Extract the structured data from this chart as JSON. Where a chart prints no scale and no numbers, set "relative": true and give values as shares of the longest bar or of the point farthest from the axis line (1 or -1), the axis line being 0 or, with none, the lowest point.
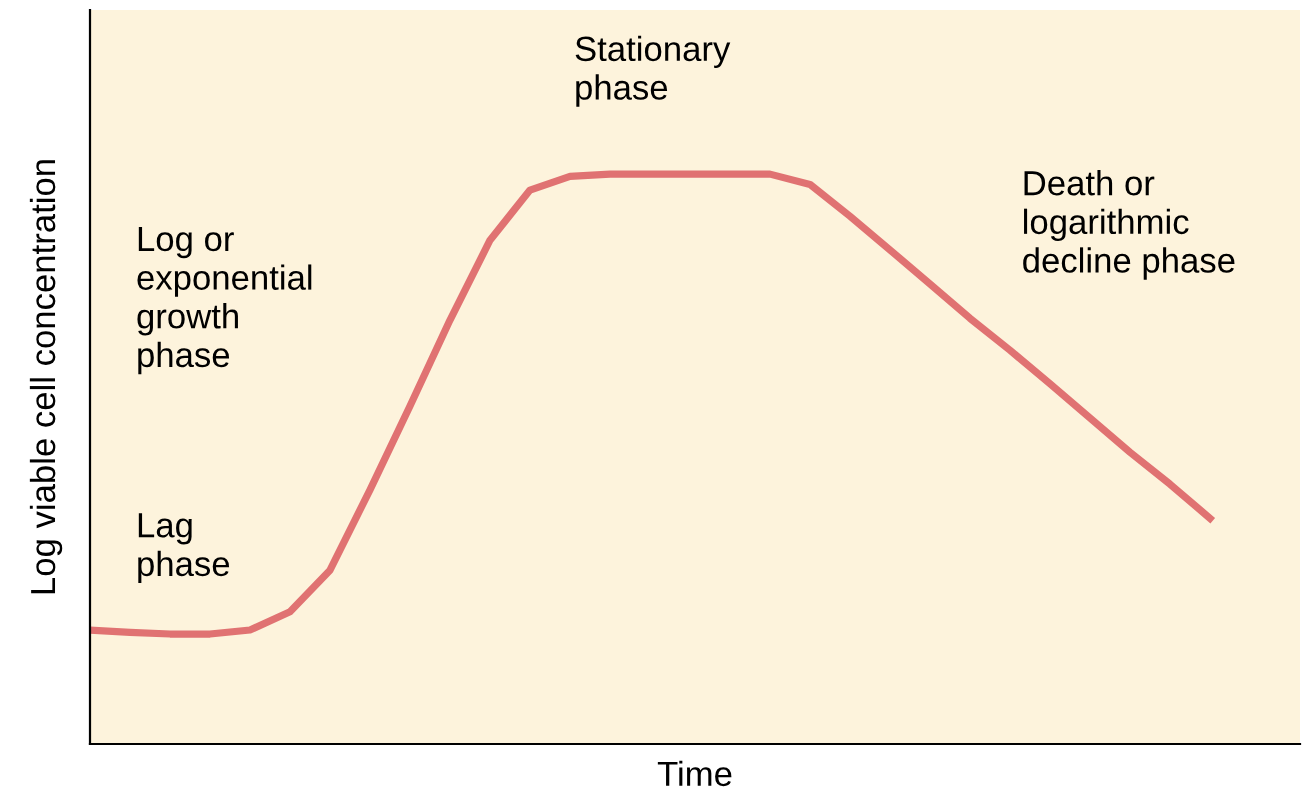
{
  "chart_data": {
    "type": "line",
    "relative": true,
    "xlabel": "Time",
    "ylabel": "Log viable cell concentration",
    "categories": [
      null,
      null,
      null,
      null,
      null,
      null,
      null,
      null,
      null,
      null,
      null,
      null,
      null,
      null,
      null,
      null,
      null,
      null,
      null,
      null,
      null,
      null,
      null,
      null,
      null,
      null,
      null,
      null,
      null
    ],
    "series": [
      {
        "color": "#e07272",
        "values": [
          0.2,
          0.196,
          0.193,
          0.193,
          0.2,
          0.232,
          0.305,
          0.446,
          0.593,
          0.744,
          0.884,
          0.972,
          0.996,
          1,
          1,
          1,
          1,
          1,
          0.982,
          0.926,
          0.867,
          0.807,
          0.747,
          0.691,
          0.632,
          0.572,
          0.512,
          0.456,
          0.396
        ]
      }
    ],
    "annotations": [
      "Stationary\nphase",
      "Log or\nexponential\ngrowth\nphase",
      "Lag\nphase",
      "Death or\nlogarithmic\ndecline phase"
    ],
    "legend": false,
    "marker": "none",
    "line_style": "solid"
  }
}
